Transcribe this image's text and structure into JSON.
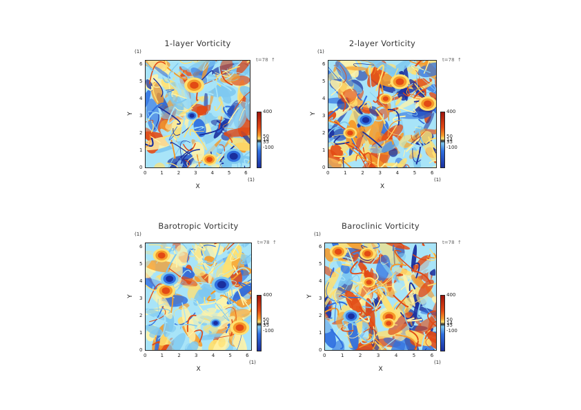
{
  "chart_data": [
    {
      "type": "heatmap",
      "title": "1-layer Vorticity",
      "xlabel": "X",
      "ylabel": "Y",
      "x_unit": "(1)",
      "y_unit": "(1)",
      "time_label": "t=78",
      "time_marker": "↑",
      "xlim": [
        0,
        6.28
      ],
      "ylim": [
        0,
        6.28
      ],
      "xticks": [
        "0",
        "1",
        "2",
        "3",
        "4",
        "5",
        "6"
      ],
      "yticks": [
        "0",
        "1",
        "2",
        "3",
        "4",
        "5",
        "6"
      ],
      "colorbar_labels": [
        "400",
        "50",
        "14",
        "35",
        "-100"
      ],
      "palette": "mostly_blue",
      "seed": 11
    },
    {
      "type": "heatmap",
      "title": "2-layer Vorticity",
      "xlabel": "X",
      "ylabel": "Y",
      "x_unit": "(1)",
      "y_unit": "(1)",
      "time_label": "t=78",
      "time_marker": "↑",
      "xlim": [
        0,
        6.28
      ],
      "ylim": [
        0,
        6.28
      ],
      "xticks": [
        "0",
        "1",
        "2",
        "3",
        "4",
        "5",
        "6"
      ],
      "yticks": [
        "0",
        "1",
        "2",
        "3",
        "4",
        "5",
        "6"
      ],
      "colorbar_labels": [
        "400",
        "50",
        "14",
        "35",
        "-100"
      ],
      "palette": "mixed_warm",
      "seed": 23
    },
    {
      "type": "heatmap",
      "title": "Barotropic Vorticity",
      "xlabel": "X",
      "ylabel": "Y",
      "x_unit": "(1)",
      "y_unit": "(1)",
      "time_label": "t=78",
      "time_marker": "↑",
      "xlim": [
        0,
        6.28
      ],
      "ylim": [
        0,
        6.28
      ],
      "xticks": [
        "0",
        "1",
        "2",
        "3",
        "4",
        "5",
        "6"
      ],
      "yticks": [
        "0",
        "1",
        "2",
        "3",
        "4",
        "5",
        "6"
      ],
      "colorbar_labels": [
        "400",
        "50",
        "14",
        "35",
        "-100"
      ],
      "palette": "light_mixed",
      "seed": 37
    },
    {
      "type": "heatmap",
      "title": "Baroclinic Vorticity",
      "xlabel": "X",
      "ylabel": "Y",
      "x_unit": "(1)",
      "y_unit": "(1)",
      "time_label": "t=78",
      "time_marker": "↑",
      "xlim": [
        0,
        6.28
      ],
      "ylim": [
        0,
        6.28
      ],
      "xticks": [
        "0",
        "1",
        "2",
        "3",
        "4",
        "5",
        "6"
      ],
      "yticks": [
        "0",
        "1",
        "2",
        "3",
        "4",
        "5",
        "6"
      ],
      "colorbar_labels": [
        "400",
        "50",
        "14",
        "35",
        "-100"
      ],
      "palette": "mixed_warm",
      "seed": 51
    }
  ],
  "colors": {
    "dark_blue": "#1a2f9e",
    "blue": "#2f6fe0",
    "light_blue": "#7ec8f0",
    "cyan": "#a8e4f8",
    "pale_yellow": "#fff3a8",
    "yellow": "#ffe070",
    "orange": "#f59a2a",
    "red_orange": "#e24a14",
    "dark_red": "#a0140c"
  }
}
